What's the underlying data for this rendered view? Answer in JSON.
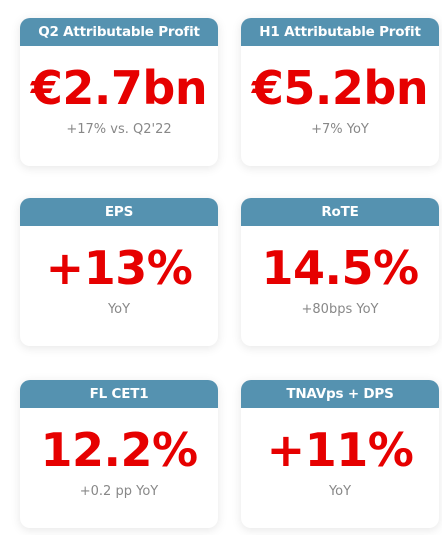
{
  "cards": [
    {
      "header": "Q2 Attributable Profit",
      "value": "€2.7bn",
      "note": "+17% vs. Q2'22"
    },
    {
      "header": "H1 Attributable Profit",
      "value": "€5.2bn",
      "note": "+7% YoY"
    },
    {
      "header": "EPS",
      "value": "+13%",
      "note": "YoY"
    },
    {
      "header": "RoTE",
      "value": "14.5%",
      "note": "+80bps YoY"
    },
    {
      "header": "FL CET1",
      "value": "12.2%",
      "note": "+0.2 pp YoY"
    },
    {
      "header": "TNAVps + DPS",
      "value": "+11%",
      "note": "YoY"
    }
  ]
}
